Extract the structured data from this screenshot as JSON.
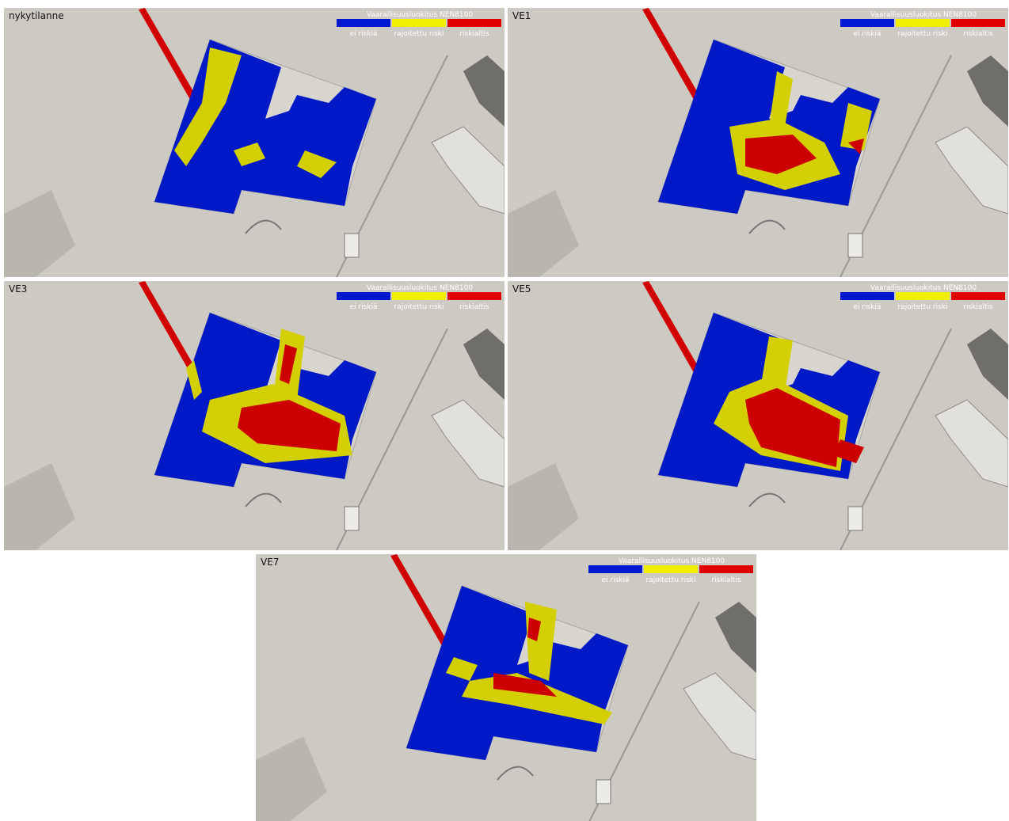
{
  "panels": [
    {
      "label": "nykytilanne",
      "legend": {
        "title": "Vaarallisuusluokitus NEN8100",
        "items": [
          "ei riskiä",
          "rajoitettu riski",
          "riskialtis"
        ]
      }
    },
    {
      "label": "VE1",
      "legend": {
        "title": "Vaarallisuusluokitus NEN8100",
        "items": [
          "ei riskiä",
          "rajoitettu riski",
          "riskialtis"
        ]
      }
    },
    {
      "label": "VE3",
      "legend": {
        "title": "Vaarallisuusluokitus NEN8100",
        "items": [
          "ei riskiä",
          "rajoitettu riski",
          "riskialtis"
        ]
      }
    },
    {
      "label": "VE5",
      "legend": {
        "title": "Vaarallisuusluokitus NEN8100",
        "items": [
          "ei riskiä",
          "rajoitettu riski",
          "riskialtis"
        ]
      }
    },
    {
      "label": "VE7",
      "legend": {
        "title": "Vaarallisuusluokitus NEN8100",
        "items": [
          "ei riskiä",
          "rajoitettu riski",
          "riskialtis"
        ]
      }
    }
  ]
}
